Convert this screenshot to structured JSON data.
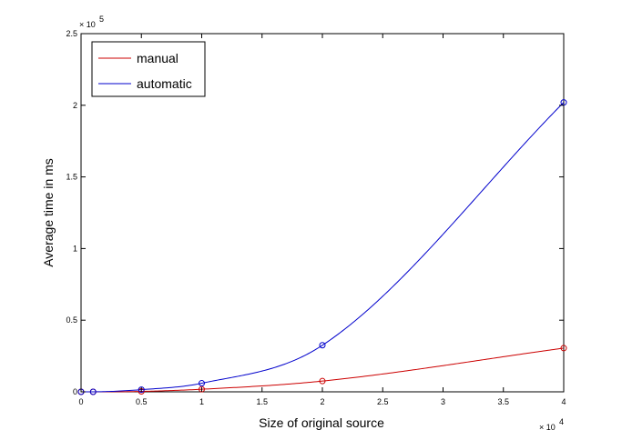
{
  "chart_data": {
    "type": "line",
    "xlabel": "Size of original source",
    "ylabel": "Average time in ms",
    "xlim": [
      0,
      40000
    ],
    "ylim": [
      0,
      250000
    ],
    "x_ticks": [
      0,
      5000,
      10000,
      15000,
      20000,
      25000,
      30000,
      35000,
      40000
    ],
    "x_tick_labels": [
      "0",
      "0.5",
      "1",
      "1.5",
      "2",
      "2.5",
      "3",
      "3.5",
      "4"
    ],
    "y_ticks": [
      0,
      50000,
      100000,
      150000,
      200000,
      250000
    ],
    "y_tick_labels": [
      "0",
      "0.5",
      "1",
      "1.5",
      "2",
      "2.5"
    ],
    "x_multiplier": {
      "base": "× 10",
      "exp": "4"
    },
    "y_multiplier": {
      "base": "× 10",
      "exp": "5"
    },
    "grid": false,
    "legend_position": "top-left",
    "series": [
      {
        "name": "manual",
        "color": "#cc0000",
        "marker": "circle",
        "points": [
          [
            0,
            0
          ],
          [
            1000,
            5
          ],
          [
            5000,
            300
          ],
          [
            10000,
            1800
          ],
          [
            20000,
            7500
          ],
          [
            40000,
            30500
          ]
        ]
      },
      {
        "name": "automatic",
        "color": "#0000cc",
        "marker": "circle",
        "points": [
          [
            0,
            0
          ],
          [
            1000,
            20
          ],
          [
            5000,
            1500
          ],
          [
            10000,
            6000
          ],
          [
            20000,
            32500
          ],
          [
            40000,
            202000
          ]
        ]
      }
    ]
  }
}
